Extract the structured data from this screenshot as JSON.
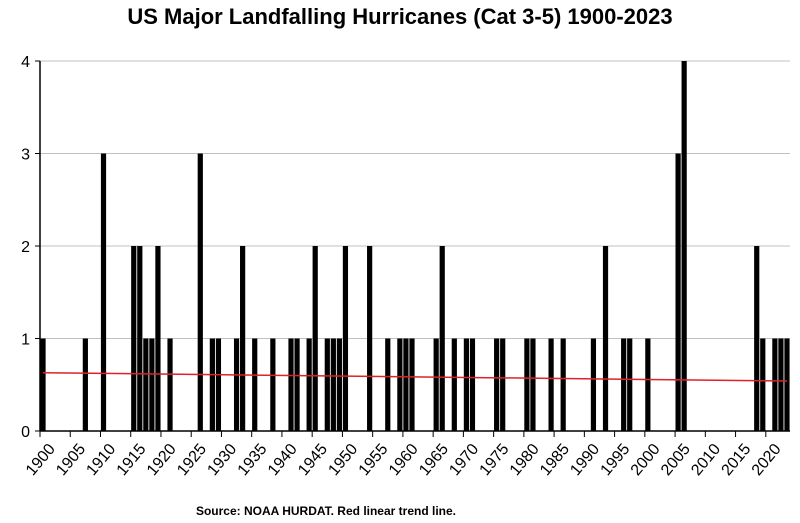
{
  "chart_data": {
    "type": "bar",
    "title": "US Major Landfalling Hurricanes (Cat 3-5) 1900-2023",
    "source_note": "Source: NOAA HURDAT.    Red linear trend line.",
    "x_start": 1900,
    "x_end": 2023,
    "x_tick_labels": [
      "1900",
      "1905",
      "1910",
      "1915",
      "1920",
      "1925",
      "1930",
      "1935",
      "1940",
      "1945",
      "1950",
      "1955",
      "1960",
      "1965",
      "1970",
      "1975",
      "1980",
      "1985",
      "1990",
      "1995",
      "2000",
      "2005",
      "2010",
      "2015",
      "2020"
    ],
    "y_tick_labels": [
      "0",
      "1",
      "2",
      "3",
      "4"
    ],
    "ylim": [
      0,
      4
    ],
    "grid": true,
    "values": [
      1,
      0,
      0,
      0,
      0,
      0,
      0,
      1,
      0,
      0,
      3,
      0,
      0,
      0,
      0,
      2,
      2,
      1,
      1,
      2,
      0,
      1,
      0,
      0,
      0,
      0,
      3,
      0,
      1,
      1,
      0,
      0,
      1,
      2,
      0,
      1,
      0,
      0,
      1,
      0,
      0,
      1,
      1,
      0,
      1,
      2,
      0,
      1,
      1,
      1,
      2,
      0,
      0,
      0,
      2,
      0,
      0,
      1,
      0,
      1,
      1,
      1,
      0,
      0,
      0,
      1,
      2,
      0,
      1,
      0,
      1,
      1,
      0,
      0,
      0,
      1,
      1,
      0,
      0,
      0,
      1,
      1,
      0,
      0,
      1,
      0,
      1,
      0,
      0,
      0,
      0,
      1,
      0,
      2,
      0,
      0,
      1,
      1,
      0,
      0,
      1,
      0,
      0,
      0,
      0,
      3,
      4,
      0,
      0,
      0,
      0,
      0,
      0,
      0,
      0,
      0,
      0,
      0,
      2,
      1,
      0,
      1,
      1,
      1
    ],
    "trend_line": {
      "start": [
        1900,
        0.63
      ],
      "end": [
        2023,
        0.54
      ]
    },
    "colors": {
      "bars": "#000000",
      "trend": "#e0202a",
      "grid": "#c0c0c0",
      "axis": "#000000"
    }
  }
}
